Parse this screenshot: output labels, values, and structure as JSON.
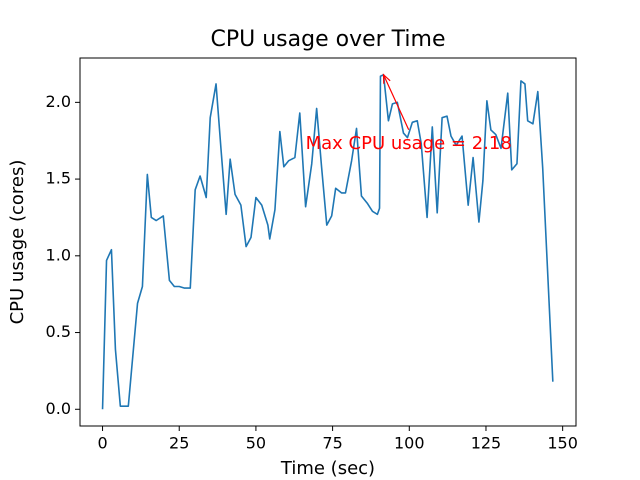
{
  "chart_data": {
    "type": "line",
    "title": "CPU usage over Time",
    "x_label": "Time (sec)",
    "y_label": "CPU usage (cores)",
    "xlim": [
      -7.35,
      154.35
    ],
    "ylim": [
      -0.109,
      2.289
    ],
    "xticks": [
      0,
      25,
      50,
      75,
      100,
      125,
      150
    ],
    "yticks": [
      {
        "value": 0,
        "label": "0.0"
      },
      0.5,
      {
        "value": 1,
        "label": "1.0"
      },
      1.5,
      {
        "value": 2,
        "label": "2.0"
      }
    ],
    "grid": false,
    "series": [
      {
        "color": "#1f77b4",
        "x": [
          0,
          1.3,
          2.9,
          4.2,
          5.8,
          8.4,
          11.4,
          13.0,
          14.6,
          15.9,
          17.5,
          19.8,
          21.8,
          23.4,
          25.0,
          26.6,
          28.6,
          30.2,
          31.8,
          33.8,
          35.1,
          37.0,
          38.6,
          40.3,
          41.6,
          43.2,
          45.1,
          46.8,
          48.4,
          50.0,
          51.9,
          53.9,
          54.5,
          56.2,
          57.8,
          59.1,
          60.7,
          62.7,
          64.3,
          66.2,
          68.2,
          69.8,
          71.4,
          73.1,
          74.7,
          76.0,
          77.9,
          79.2,
          81.2,
          82.8,
          84.4,
          86.4,
          88.0,
          89.6,
          90.3,
          90.6,
          91.6,
          93.2,
          94.5,
          96.1,
          98.1,
          99.4,
          101.0,
          102.6,
          103.9,
          105.8,
          107.5,
          109.1,
          110.7,
          112.3,
          113.6,
          115.3,
          117.2,
          119.2,
          120.8,
          122.7,
          124.0,
          125.3,
          126.6,
          128.2,
          129.9,
          132.1,
          133.4,
          135.1,
          136.4,
          137.7,
          138.6,
          140.3,
          141.9,
          143.5,
          146.8
        ],
        "values": [
          0,
          0.97,
          1.04,
          0.39,
          0.02,
          0.02,
          0.69,
          0.8,
          1.53,
          1.25,
          1.23,
          1.26,
          0.84,
          0.8,
          0.8,
          0.79,
          0.79,
          1.43,
          1.52,
          1.38,
          1.9,
          2.12,
          1.7,
          1.27,
          1.63,
          1.4,
          1.33,
          1.06,
          1.12,
          1.38,
          1.33,
          1.2,
          1.11,
          1.3,
          1.81,
          1.58,
          1.62,
          1.64,
          1.93,
          1.32,
          1.6,
          1.96,
          1.58,
          1.2,
          1.26,
          1.44,
          1.41,
          1.41,
          1.62,
          1.83,
          1.39,
          1.34,
          1.29,
          1.27,
          1.31,
          2.17,
          2.18,
          1.88,
          1.99,
          2.0,
          1.8,
          1.77,
          1.87,
          1.88,
          1.73,
          1.25,
          1.84,
          1.28,
          1.9,
          1.91,
          1.78,
          1.72,
          1.78,
          1.33,
          1.64,
          1.22,
          1.49,
          2.01,
          1.82,
          1.79,
          1.7,
          2.06,
          1.56,
          1.6,
          2.14,
          2.12,
          1.88,
          1.86,
          2.07,
          1.57,
          0.18
        ]
      }
    ],
    "annotation": {
      "text": "Max CPU usage = 2.18",
      "x": 91.6,
      "y": 2.18,
      "text_x": 66.2,
      "text_y": 1.73,
      "color": "#ff0000"
    }
  }
}
